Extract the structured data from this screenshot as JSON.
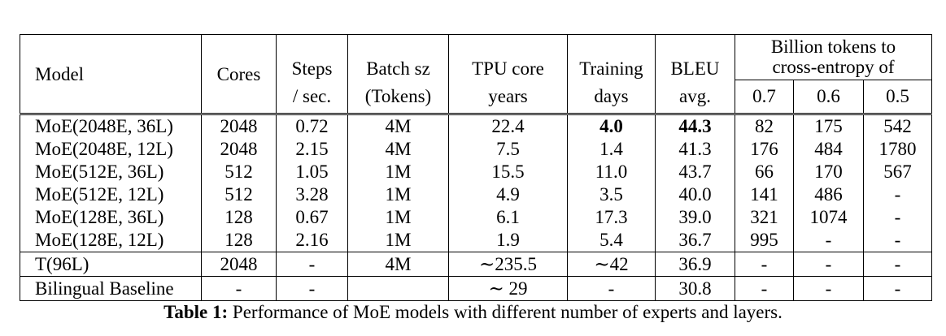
{
  "table": {
    "headers": {
      "model": "Model",
      "cores": "Cores",
      "steps_line1": "Steps",
      "steps_line2": "/ sec.",
      "batch_line1": "Batch sz",
      "batch_line2": "(Tokens)",
      "tpu_line1": "TPU core",
      "tpu_line2": "years",
      "training_line1": "Training",
      "training_line2": "days",
      "bleu_line1": "BLEU",
      "bleu_line2": "avg.",
      "billion_line1": "Billion tokens to",
      "billion_line2": "cross-entropy of",
      "thresholds": [
        "0.7",
        "0.6",
        "0.5"
      ]
    },
    "moe_rows": [
      {
        "model": "MoE(2048E, 36L)",
        "cores": "2048",
        "steps": "0.72",
        "batch": "4M",
        "tpu": "22.4",
        "days": "4.0",
        "bleu": "44.3",
        "t07": "82",
        "t06": "175",
        "t05": "542"
      },
      {
        "model": "MoE(2048E, 12L)",
        "cores": "2048",
        "steps": "2.15",
        "batch": "4M",
        "tpu": "7.5",
        "days": "1.4",
        "bleu": "41.3",
        "t07": "176",
        "t06": "484",
        "t05": "1780"
      },
      {
        "model": "MoE(512E, 36L)",
        "cores": "512",
        "steps": "1.05",
        "batch": "1M",
        "tpu": "15.5",
        "days": "11.0",
        "bleu": "43.7",
        "t07": "66",
        "t06": "170",
        "t05": "567"
      },
      {
        "model": "MoE(512E, 12L)",
        "cores": "512",
        "steps": "3.28",
        "batch": "1M",
        "tpu": "4.9",
        "days": "3.5",
        "bleu": "40.0",
        "t07": "141",
        "t06": "486",
        "t05": "-"
      },
      {
        "model": "MoE(128E, 36L)",
        "cores": "128",
        "steps": "0.67",
        "batch": "1M",
        "tpu": "6.1",
        "days": "17.3",
        "bleu": "39.0",
        "t07": "321",
        "t06": "1074",
        "t05": "-"
      },
      {
        "model": "MoE(128E, 12L)",
        "cores": "128",
        "steps": "2.16",
        "batch": "1M",
        "tpu": "1.9",
        "days": "5.4",
        "bleu": "36.7",
        "t07": "995",
        "t06": "-",
        "t05": "-"
      }
    ],
    "other_rows": [
      {
        "model": "T(96L)",
        "cores": "2048",
        "steps": "-",
        "batch": "4M",
        "tpu": "∼235.5",
        "days": "∼42",
        "bleu": "36.9",
        "t07": "-",
        "t06": "-",
        "t05": "-"
      },
      {
        "model": "Bilingual Baseline",
        "cores": "-",
        "steps": "-",
        "batch": "",
        "tpu": "∼ 29",
        "days": "-",
        "bleu": "30.8",
        "t07": "-",
        "t06": "-",
        "t05": "-"
      }
    ]
  },
  "caption": {
    "label": "Table 1:",
    "text": " Performance of MoE models with different number of experts and layers."
  }
}
